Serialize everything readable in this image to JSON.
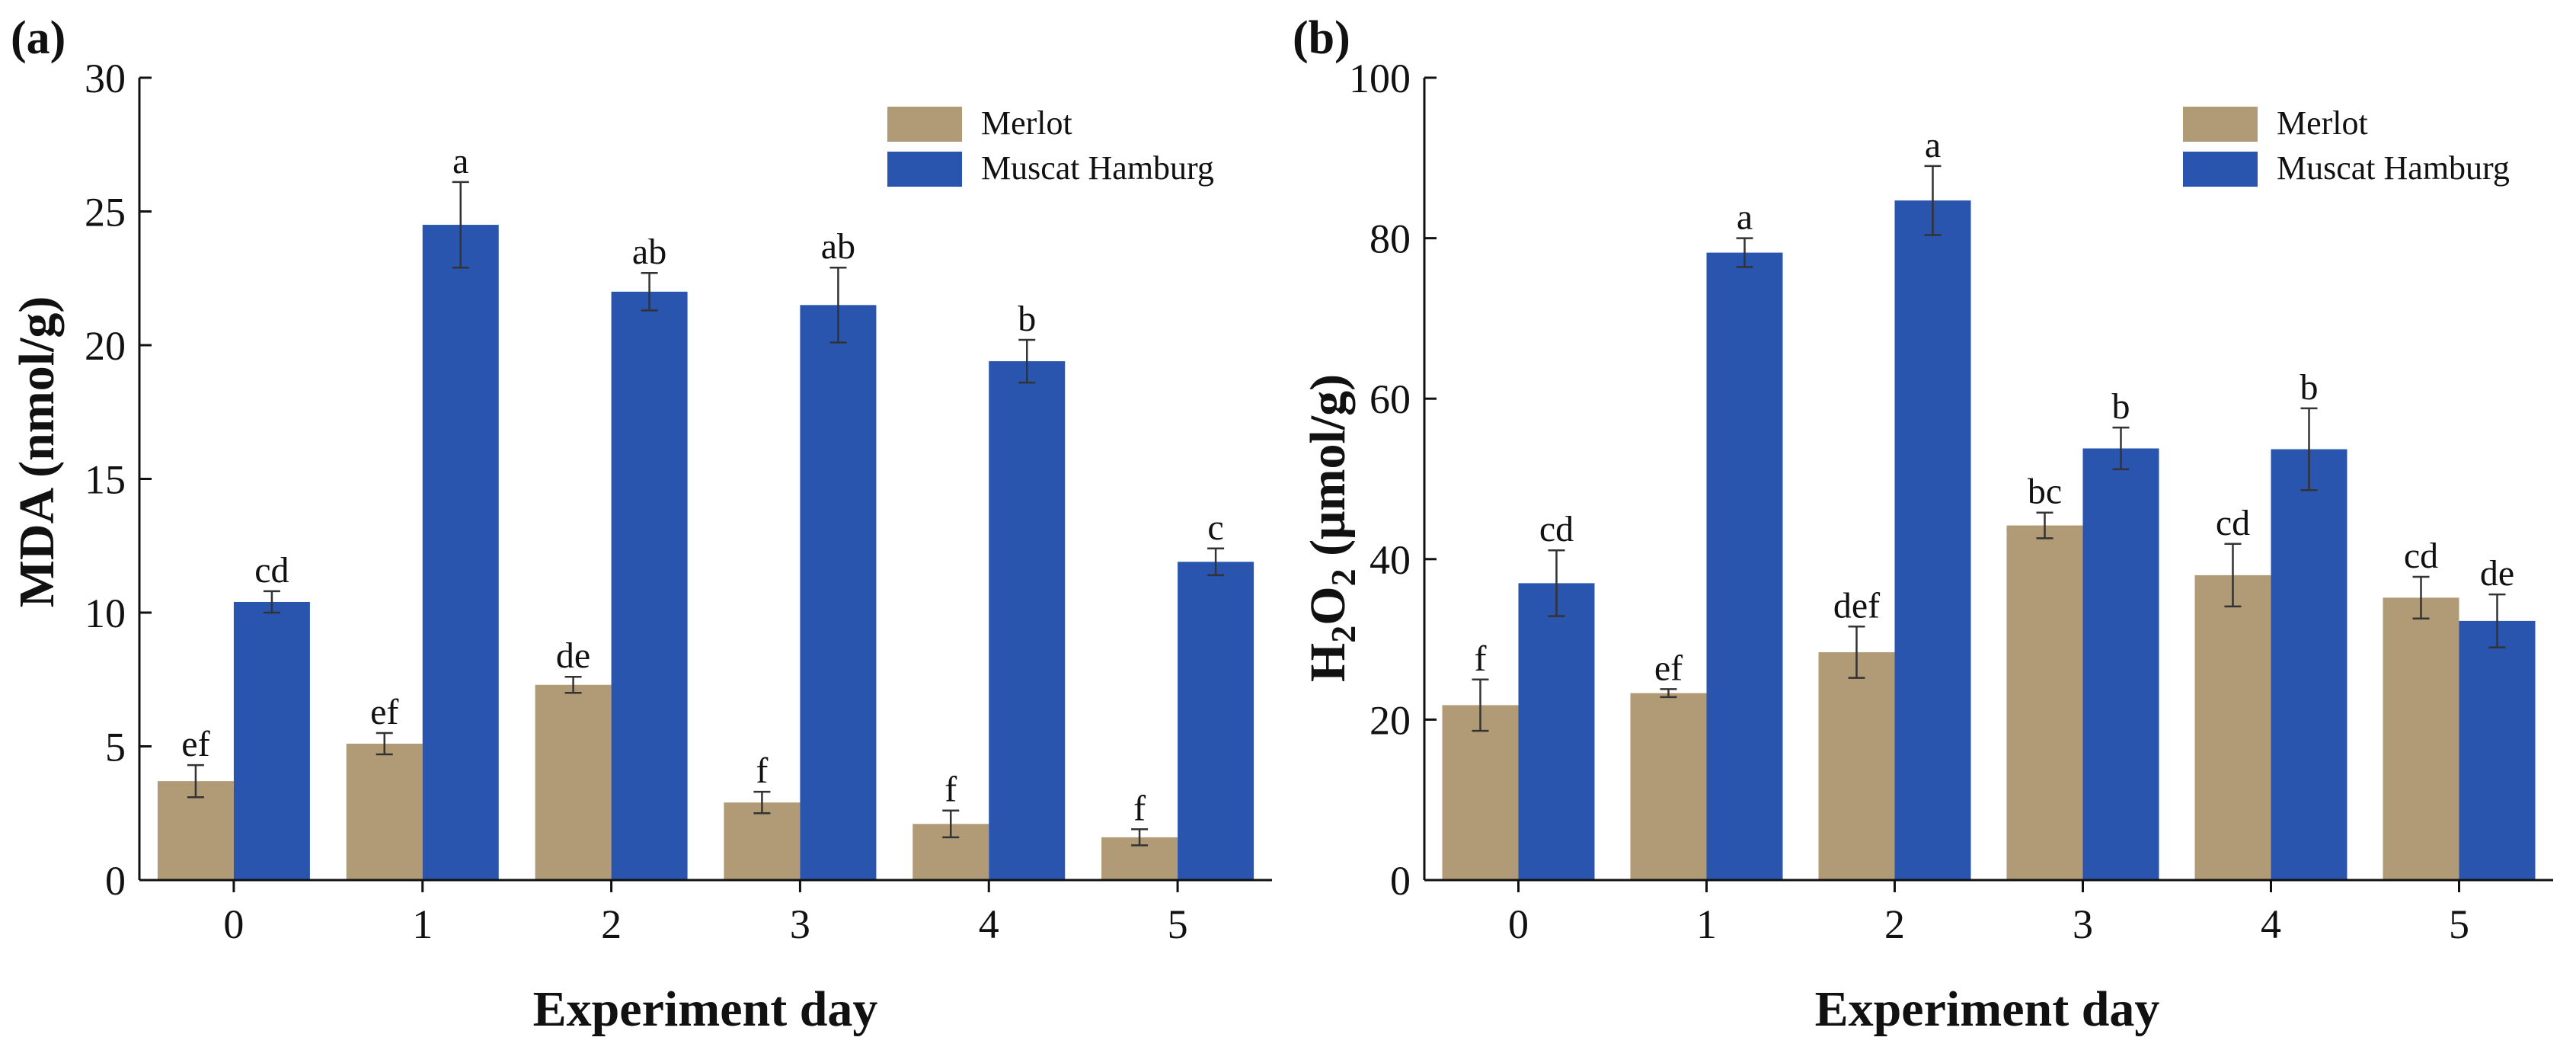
{
  "colors": {
    "merlot": "#b09b76",
    "muscat": "#2a55ae",
    "axis": "#111111"
  },
  "chart_data": [
    {
      "type": "bar",
      "panel_label": "(a)",
      "categories": [
        "0",
        "1",
        "2",
        "3",
        "4",
        "5"
      ],
      "xlabel": "Experiment day",
      "ylabel": "MDA (nmol/g)",
      "ylim": [
        0,
        30
      ],
      "yticks": [
        "0",
        "5",
        "10",
        "15",
        "20",
        "25",
        "30"
      ],
      "ytick_values": [
        0,
        5,
        10,
        15,
        20,
        25,
        30
      ],
      "legend_position": "top-right",
      "series": [
        {
          "name": "Merlot",
          "values": [
            3.7,
            5.1,
            7.3,
            2.9,
            2.1,
            1.6
          ],
          "errors": [
            0.6,
            0.4,
            0.3,
            0.4,
            0.5,
            0.3
          ],
          "letters": [
            "ef",
            "ef",
            "de",
            "f",
            "f",
            "f"
          ]
        },
        {
          "name": "Muscat Hamburg",
          "values": [
            10.4,
            24.5,
            22.0,
            21.5,
            19.4,
            11.9
          ],
          "errors": [
            0.4,
            1.6,
            0.7,
            1.4,
            0.8,
            0.5
          ],
          "letters": [
            "cd",
            "a",
            "ab",
            "ab",
            "b",
            "c"
          ]
        }
      ]
    },
    {
      "type": "bar",
      "panel_label": "(b)",
      "categories": [
        "0",
        "1",
        "2",
        "3",
        "4",
        "5"
      ],
      "xlabel": "Experiment day",
      "ylabel": "H2O2 (μmol/g)",
      "ylabel_parts": {
        "a": "H",
        "b": "2",
        "c": "O",
        "d": "2",
        "e": " (μmol/g)"
      },
      "ylim": [
        0,
        100
      ],
      "yticks": [
        "0",
        "20",
        "40",
        "60",
        "80",
        "100"
      ],
      "ytick_values": [
        0,
        20,
        40,
        60,
        80,
        100
      ],
      "legend_position": "top-right",
      "series": [
        {
          "name": "Merlot",
          "values": [
            21.8,
            23.3,
            28.4,
            44.2,
            38.0,
            35.2
          ],
          "errors": [
            3.2,
            0.5,
            3.2,
            1.6,
            3.9,
            2.6
          ],
          "letters": [
            "f",
            "ef",
            "def",
            "bc",
            "cd",
            "cd"
          ]
        },
        {
          "name": "Muscat Hamburg",
          "values": [
            37.0,
            78.2,
            84.7,
            53.8,
            53.7,
            32.3
          ],
          "errors": [
            4.1,
            1.8,
            4.3,
            2.6,
            5.1,
            3.3
          ],
          "letters": [
            "cd",
            "a",
            "a",
            "b",
            "b",
            "de"
          ]
        }
      ]
    }
  ]
}
